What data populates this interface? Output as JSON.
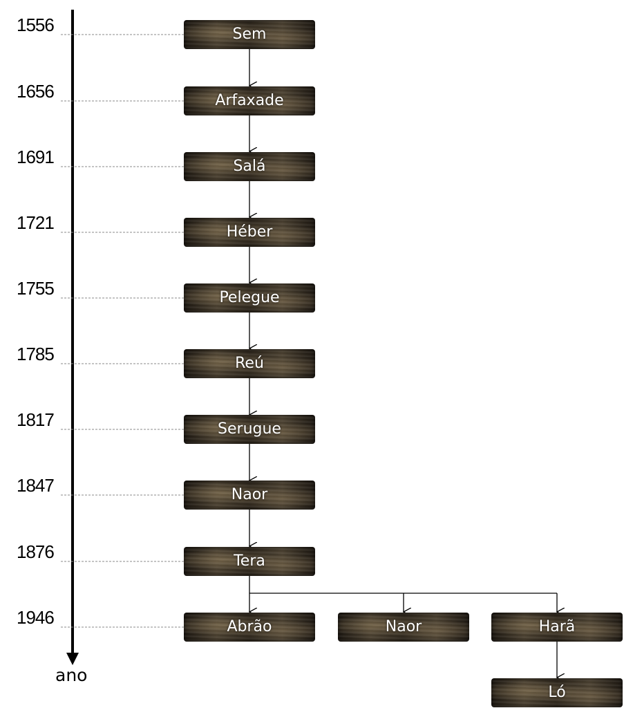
{
  "timeline": {
    "years": [
      "1556",
      "1656",
      "1691",
      "1721",
      "1755",
      "1785",
      "1817",
      "1847",
      "1876",
      "1946"
    ],
    "axis_label": "ano"
  },
  "genealogy": {
    "lineage": [
      "Sem",
      "Arfaxade",
      "Salá",
      "Héber",
      "Pelegue",
      "Reú",
      "Serugue",
      "Naor",
      "Tera"
    ],
    "sons_of_tera": [
      "Abrão",
      "Naor",
      "Harã"
    ],
    "son_of_hara": "Ló"
  },
  "colors": {
    "node_text": "#ffffff",
    "line": "#000000",
    "guide": "#888888"
  }
}
